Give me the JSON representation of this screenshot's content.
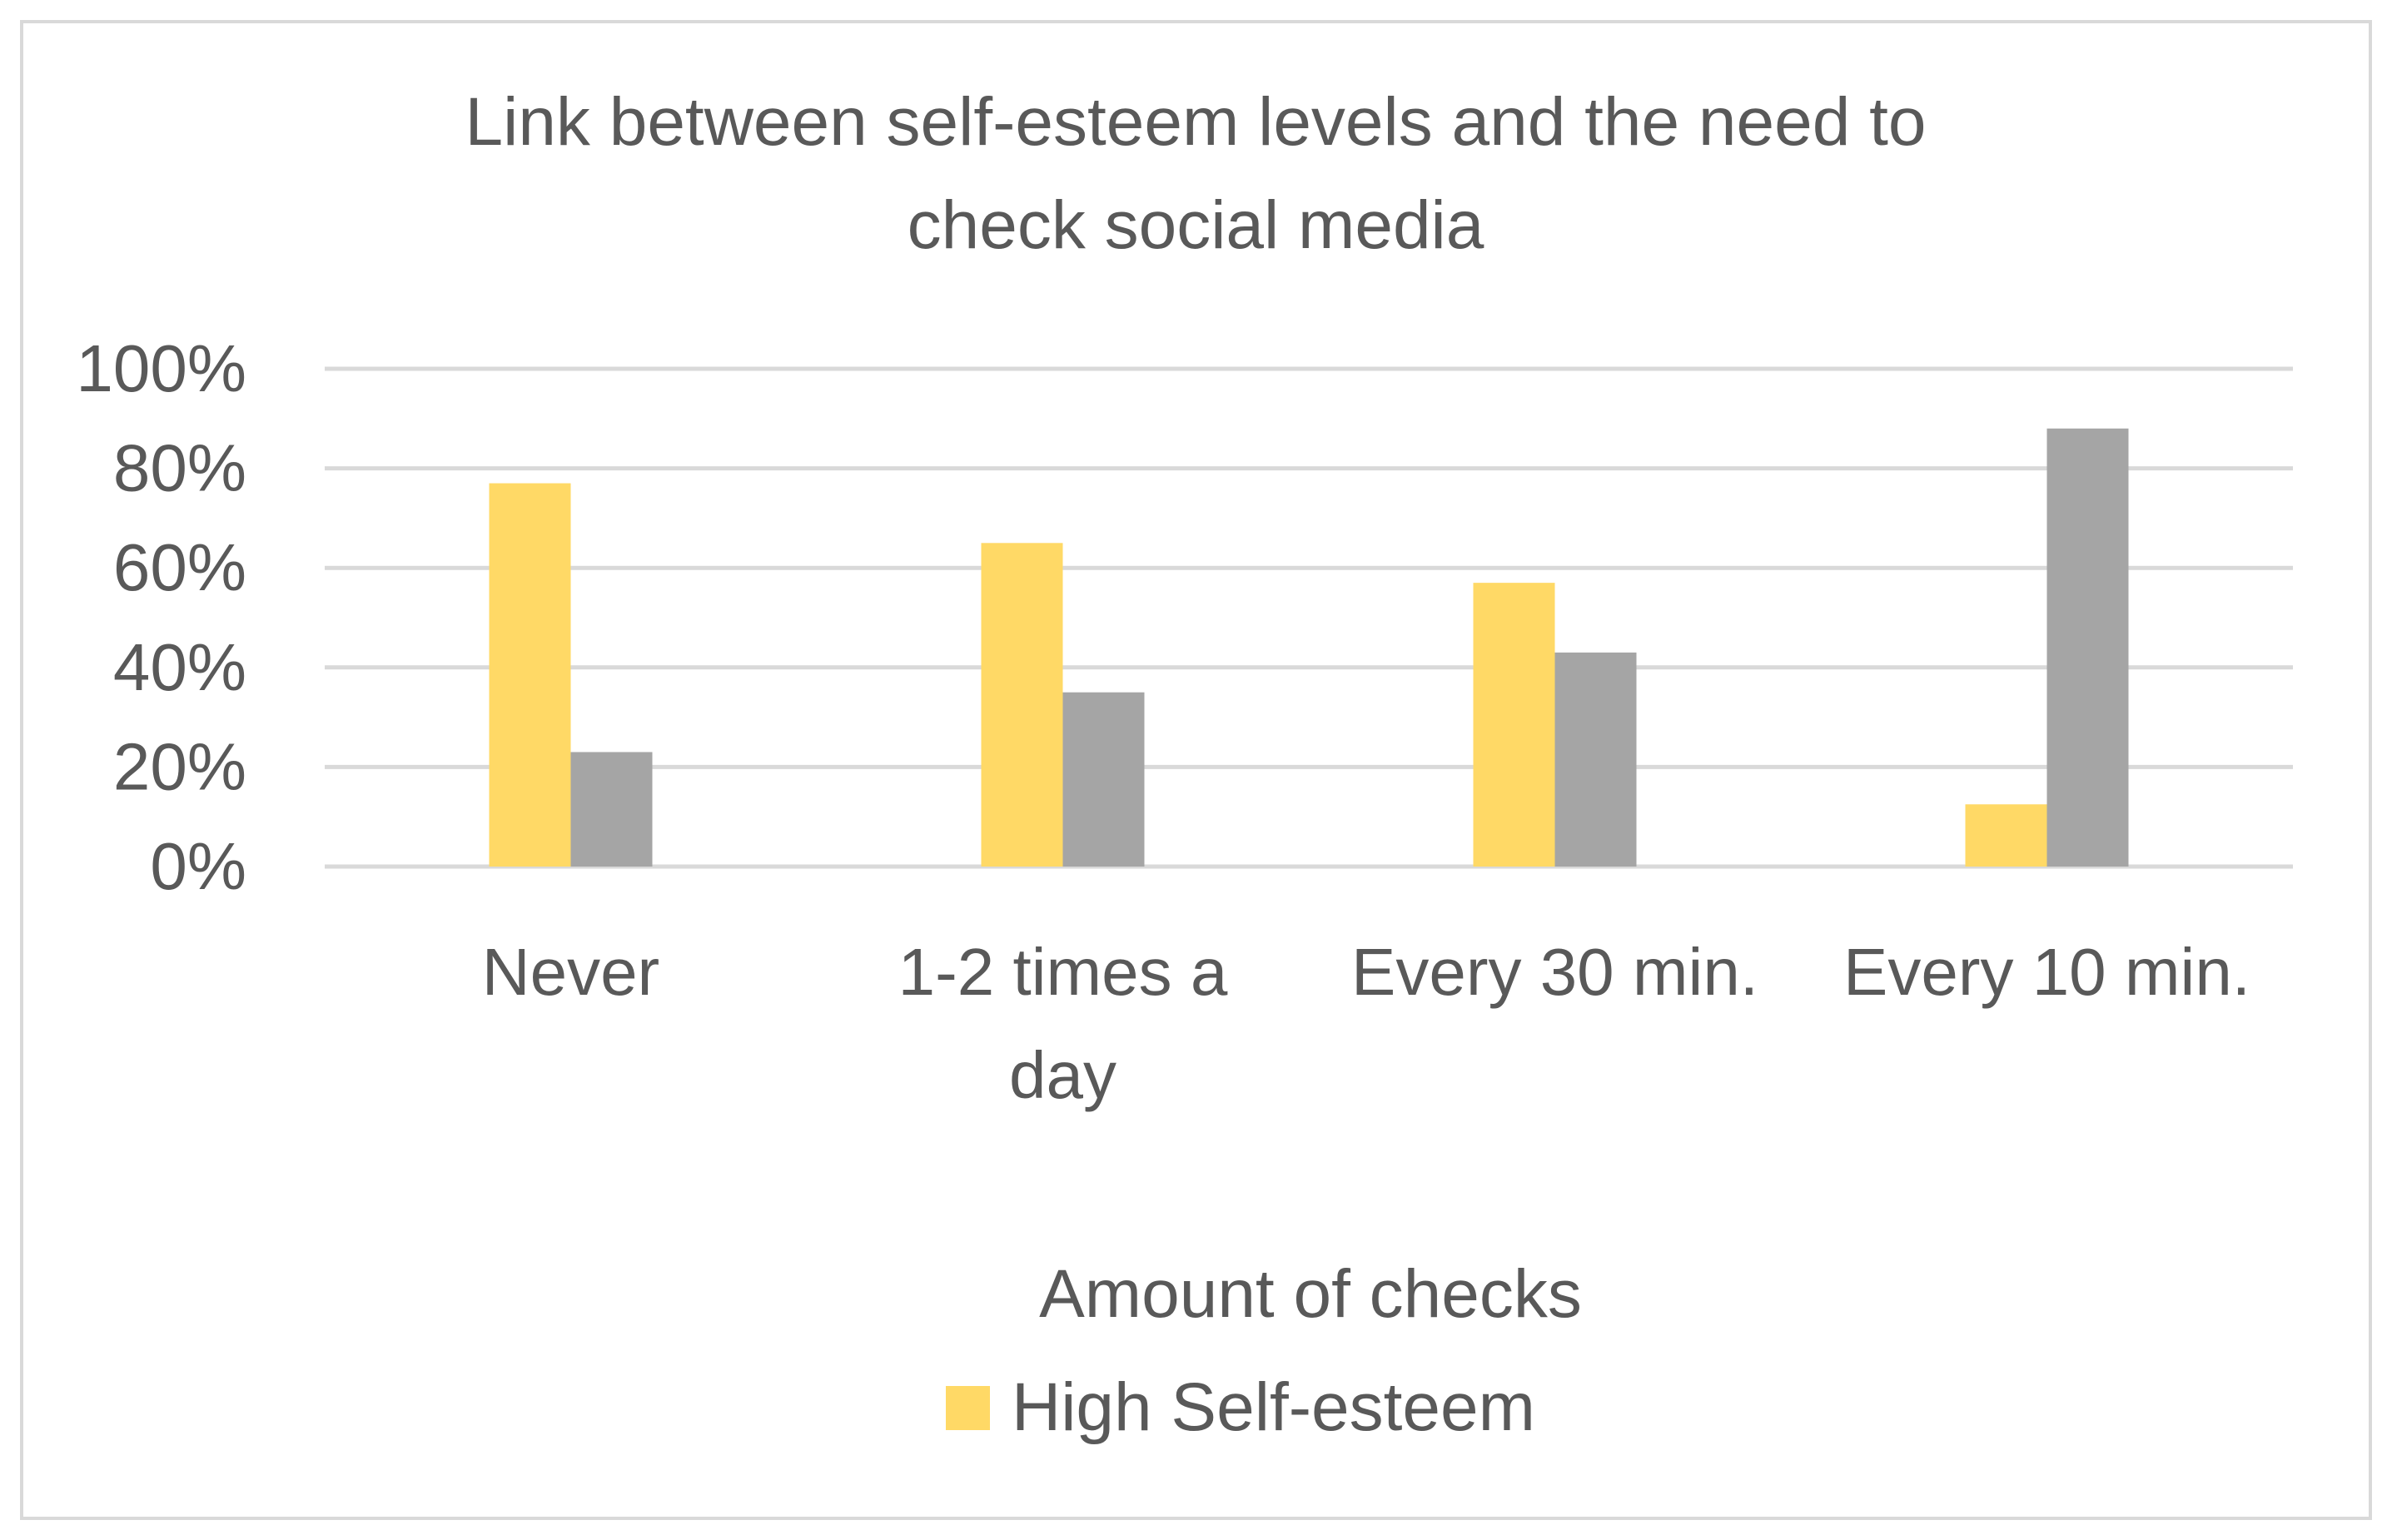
{
  "chart_data": {
    "type": "bar",
    "title_lines": [
      "Link between self-esteem levels and the need to",
      "check social media"
    ],
    "xlabel": "Amount of checks",
    "ylabel": "",
    "categories": [
      {
        "lines": [
          "Never"
        ]
      },
      {
        "lines": [
          "1-2 times a",
          "day"
        ]
      },
      {
        "lines": [
          "Every 30 min."
        ]
      },
      {
        "lines": [
          "Every 10 min."
        ]
      }
    ],
    "y_ticks": [
      "0%",
      "20%",
      "40%",
      "60%",
      "80%",
      "100%"
    ],
    "ylim": [
      0,
      100
    ],
    "y_unit": "%",
    "grid": true,
    "legend_position": "bottom",
    "series": [
      {
        "name": "High Self-esteem",
        "color": "#ffd966",
        "values": [
          77,
          65,
          57,
          12.5
        ]
      },
      {
        "color": "#a5a5a5",
        "values": [
          23,
          35,
          43,
          88
        ]
      }
    ],
    "gridline_color": "#d9d9d9",
    "text_color": "#595959"
  }
}
